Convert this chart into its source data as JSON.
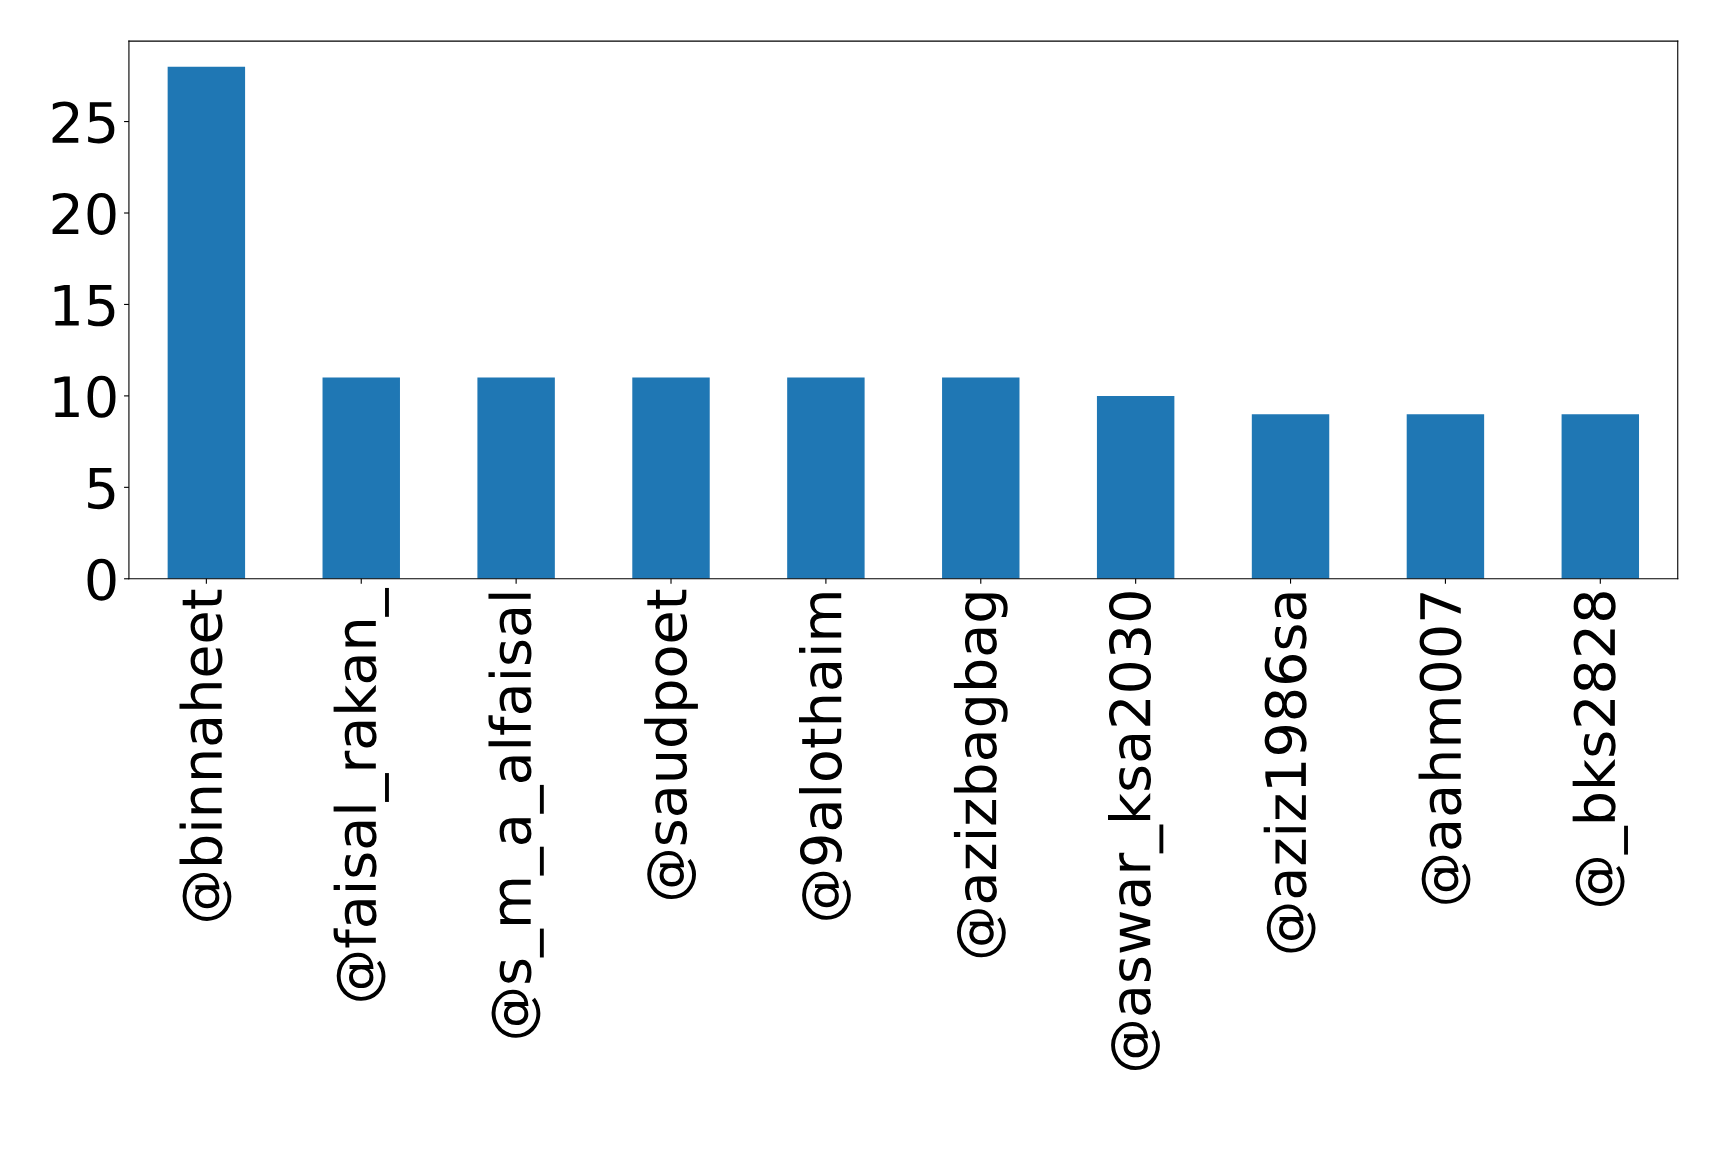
{
  "chart_data": {
    "type": "bar",
    "categories": [
      "@binnaheet",
      "@faisal_rakan_",
      "@s_m_a_alfaisal",
      "@saudpoet",
      "@9alothaim",
      "@azizbagbag",
      "@aswar_ksa2030",
      "@aziz1986sa",
      "@aahm007",
      "@_bks2828"
    ],
    "values": [
      28,
      11,
      11,
      11,
      11,
      11,
      10,
      9,
      9,
      9
    ],
    "color": "#1f77b4",
    "ylim": [
      0,
      29.4
    ],
    "yticks": [
      0,
      5,
      10,
      15,
      20,
      25
    ],
    "grid": false,
    "legend": false
  }
}
